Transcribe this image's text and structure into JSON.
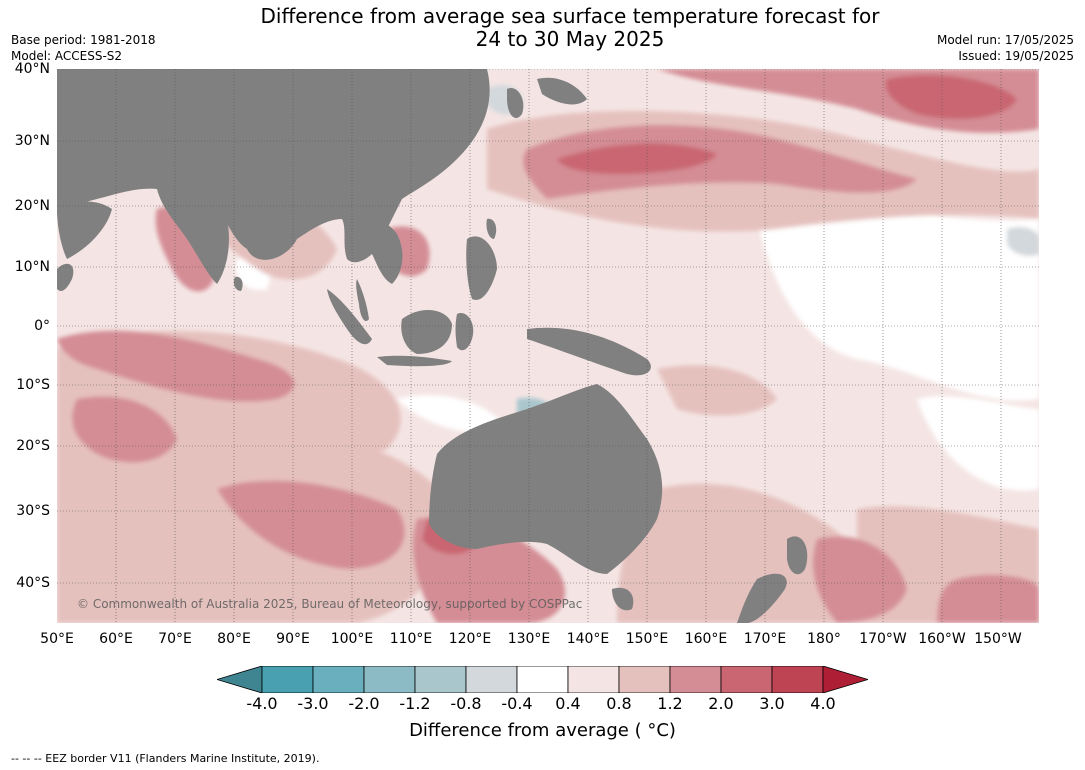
{
  "header": {
    "title_line1": "Difference from average sea surface temperature forecast for",
    "title_line2": "24 to 30 May 2025",
    "base_period": "Base period: 1981-2018",
    "model": "Model: ACCESS-S2",
    "model_run": "Model run: 17/05/2025",
    "issued": "Issued: 19/05/2025"
  },
  "map": {
    "latitude_labels": [
      "40°N",
      "30°N",
      "20°N",
      "10°N",
      "0°",
      "10°S",
      "20°S",
      "30°S",
      "40°S"
    ],
    "longitude_labels": [
      "50°E",
      "60°E",
      "70°E",
      "80°E",
      "90°E",
      "100°E",
      "110°E",
      "120°E",
      "130°E",
      "140°E",
      "150°E",
      "160°E",
      "170°E",
      "180°",
      "170°W",
      "160°W",
      "150°W"
    ],
    "land_color": "#808080",
    "copyright": "© Commonwealth of Australia 2025, Bureau of Meteorology, supported by COSPPac"
  },
  "colorbar": {
    "title": "Difference from average ( °C)",
    "tick_labels": [
      "-4.0",
      "-3.0",
      "-2.0",
      "-1.2",
      "-0.8",
      "-0.4",
      "0.4",
      "0.8",
      "1.2",
      "2.0",
      "3.0",
      "4.0"
    ],
    "bin_colors": [
      "#3f8591",
      "#48a0b1",
      "#69afbd",
      "#8cbac5",
      "#a9c6cd",
      "#d3d8dc",
      "#ffffff",
      "#f4e5e4",
      "#e5c1be",
      "#d48d95",
      "#c96671",
      "#bf4453",
      "#ae1f35"
    ]
  },
  "footer": {
    "eez_note": "--  --  -- EEZ border V11 (Flanders Marine Institute, 2019)."
  }
}
